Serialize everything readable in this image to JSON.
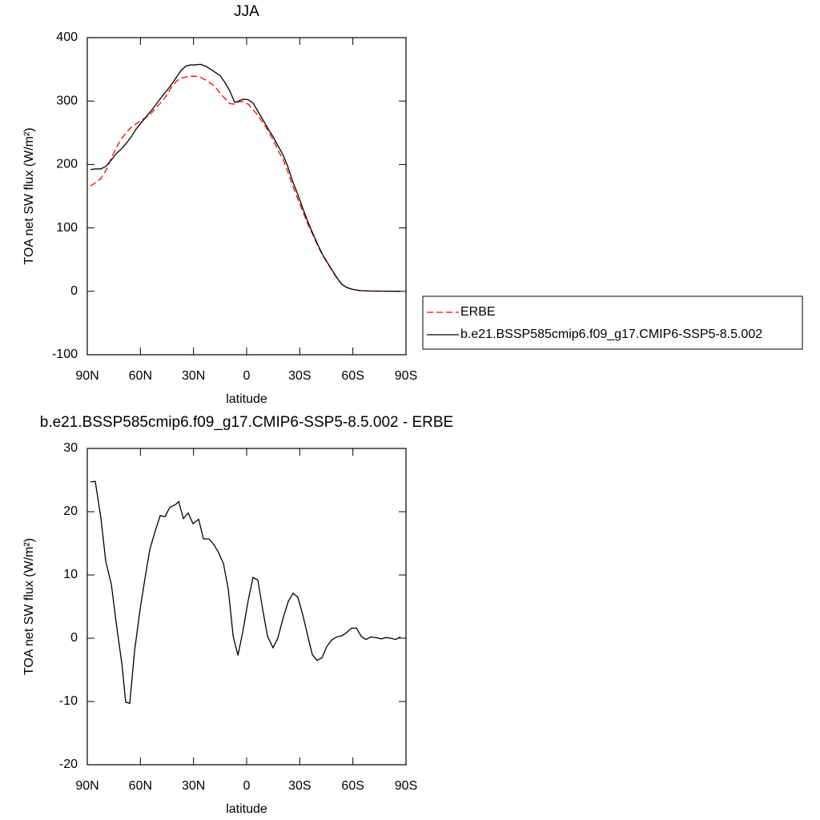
{
  "chart_data": [
    {
      "type": "line",
      "title": "JJA",
      "xlabel": "latitude",
      "ylabel": "TOA net SW flux (W/m²)",
      "x": [
        88.2,
        85.5,
        82.3,
        79.6,
        76.4,
        73.7,
        70.6,
        67.8,
        65.1,
        62.4,
        59.2,
        56.5,
        53.8,
        51.1,
        47.9,
        45.2,
        42.5,
        39.8,
        37.1,
        34.4,
        31.7,
        28.9,
        26.2,
        23.1,
        20.3,
        17.6,
        14.9,
        12.2,
        9.5,
        6.8,
        4.5,
        1.8,
        -0.9,
        -3.6,
        -6.3,
        -9.1,
        -12.2,
        -14.9,
        -17.6,
        -20.4,
        -23.1,
        -25.8,
        -29,
        -31.7,
        -34.4,
        -37.1,
        -39.8,
        -42.5,
        -45.7,
        -48.4,
        -51.1,
        -53.8,
        -56.5,
        -59.3,
        -62,
        -64.7,
        -68.8,
        -77.8,
        -86.8
      ],
      "series": [
        {
          "name": "ERBE",
          "color": "#ff0000",
          "style": "dashed",
          "values": [
            166,
            171,
            178,
            190,
            210,
            226,
            241,
            251,
            259,
            264,
            270,
            275,
            281,
            290,
            299,
            309,
            322,
            331,
            336,
            338,
            339,
            339,
            338,
            333,
            328,
            322,
            312,
            304,
            296,
            295,
            299,
            299,
            295,
            286,
            278,
            266,
            253,
            239,
            223,
            209,
            190,
            168,
            145,
            126,
            107,
            91,
            74,
            59,
            44,
            32,
            20,
            11,
            6,
            3.5,
            2,
            1,
            0.5,
            0.2,
            0
          ]
        },
        {
          "name": "b.e21.BSSP585cmip6.f09_g17.CMIP6-SSP5-8.5.002",
          "color": "#000000",
          "style": "solid",
          "values": [
            192,
            193,
            193,
            197,
            207,
            217,
            225,
            234,
            244,
            256,
            267,
            276,
            285,
            295,
            307,
            316,
            326,
            337,
            348,
            355,
            357,
            357,
            358,
            355,
            350,
            345,
            340,
            329,
            316,
            298,
            300,
            303,
            302,
            297,
            284,
            271,
            256,
            244,
            230,
            216,
            198,
            175,
            152,
            131,
            111,
            93,
            76,
            60,
            45,
            33,
            21,
            11,
            6,
            3.5,
            2,
            1,
            0.5,
            0.2,
            0
          ]
        }
      ],
      "xlim": [
        90,
        -90
      ],
      "ylim": [
        -100,
        400
      ],
      "xticks": [
        {
          "value": 90,
          "label": "90N"
        },
        {
          "value": 60,
          "label": "60N"
        },
        {
          "value": 30,
          "label": "30N"
        },
        0,
        {
          "value": -30,
          "label": "30S"
        },
        {
          "value": -60,
          "label": "60S"
        },
        {
          "value": -90,
          "label": "90S"
        }
      ],
      "yticks": [
        -100,
        0,
        100,
        200,
        300,
        400
      ],
      "legend": "right"
    },
    {
      "type": "line",
      "title": "b.e21.BSSP585cmip6.f09_g17.CMIP6-SSP5-8.5.002 - ERBE",
      "xlabel": "latitude",
      "ylabel": "TOA net SW flux (W/m²)",
      "x": [
        88.2,
        85.5,
        82.3,
        79.6,
        76.4,
        73.7,
        70.5,
        68.3,
        66,
        63.3,
        60.2,
        57.4,
        54.7,
        51.6,
        48.8,
        46.1,
        43.4,
        40.3,
        38.4,
        35.7,
        33,
        30.3,
        27.1,
        24.4,
        21.3,
        18.5,
        15.8,
        13.1,
        10.4,
        7.6,
        4.9,
        2.2,
        -0.9,
        -3.6,
        -6.3,
        -9.1,
        -11.8,
        -14.9,
        -17.6,
        -20.4,
        -23.5,
        -26.2,
        -28.9,
        -31.7,
        -34.4,
        -37.1,
        -39.8,
        -42.5,
        -45.3,
        -48,
        -50.7,
        -53.8,
        -56.5,
        -59.3,
        -62,
        -64.7,
        -67.4,
        -70.1,
        -73.3,
        -76,
        -78.7,
        -81.4,
        -84.1,
        -86.9
      ],
      "values": [
        24.7,
        24.8,
        19,
        12.2,
        8.5,
        2.5,
        -4,
        -10.1,
        -10.3,
        -2,
        4.5,
        9.5,
        14,
        17,
        19.4,
        19.2,
        20.7,
        21.1,
        21.6,
        18.9,
        19.8,
        18.1,
        18.8,
        15.7,
        15.7,
        14.8,
        13.5,
        11.8,
        7.8,
        0.3,
        -2.7,
        1,
        6,
        9.6,
        9.2,
        4.5,
        0.3,
        -1.5,
        0,
        3,
        5.8,
        7.1,
        6.5,
        3.7,
        0.5,
        -2.6,
        -3.5,
        -3.1,
        -1.3,
        -0.3,
        0.2,
        0.4,
        0.9,
        1.6,
        1.6,
        0.3,
        -0.2,
        0.2,
        0.1,
        -0.1,
        0.1,
        0,
        -0.2,
        0.2
      ],
      "color": "#000000",
      "xlim": [
        90,
        -90
      ],
      "ylim": [
        -20,
        30
      ],
      "xticks": [
        {
          "value": 90,
          "label": "90N"
        },
        {
          "value": 60,
          "label": "60N"
        },
        {
          "value": 30,
          "label": "30N"
        },
        0,
        {
          "value": -30,
          "label": "30S"
        },
        {
          "value": -60,
          "label": "60S"
        },
        {
          "value": -90,
          "label": "90S"
        }
      ],
      "yticks": [
        -20,
        -10,
        0,
        10,
        20,
        30
      ]
    }
  ]
}
